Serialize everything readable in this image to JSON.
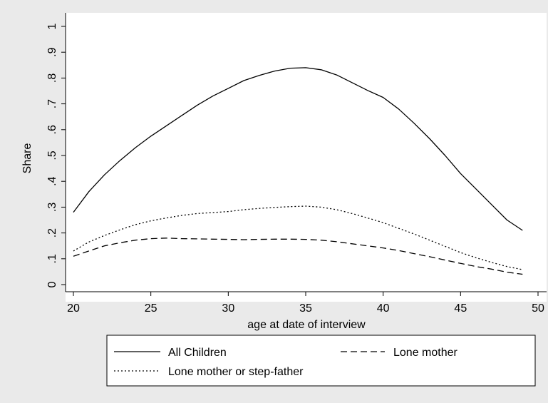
{
  "chart_data": {
    "type": "line",
    "title": "",
    "xlabel": "age at date of interview",
    "ylabel": "Share",
    "xlim": [
      20,
      50
    ],
    "ylim": [
      0,
      1
    ],
    "x_ticks": [
      "20",
      "25",
      "30",
      "35",
      "40",
      "45",
      "50"
    ],
    "y_ticks": [
      "0",
      ".1",
      ".2",
      ".3",
      ".4",
      ".5",
      ".6",
      ".7",
      ".8",
      ".9",
      "1"
    ],
    "grid": false,
    "legend": "bottom",
    "series": [
      {
        "name": "All Children",
        "style": "solid",
        "x": [
          20,
          21,
          22,
          23,
          24,
          25,
          26,
          27,
          28,
          29,
          30,
          31,
          32,
          33,
          34,
          35,
          36,
          37,
          38,
          39,
          40,
          41,
          42,
          43,
          44,
          45,
          46,
          47,
          48,
          49
        ],
        "y": [
          0.28,
          0.36,
          0.425,
          0.48,
          0.53,
          0.575,
          0.615,
          0.655,
          0.695,
          0.73,
          0.76,
          0.79,
          0.81,
          0.827,
          0.838,
          0.84,
          0.832,
          0.812,
          0.782,
          0.752,
          0.725,
          0.68,
          0.625,
          0.565,
          0.5,
          0.43,
          0.37,
          0.31,
          0.25,
          0.21
        ]
      },
      {
        "name": "Lone mother",
        "style": "dashed",
        "x": [
          20,
          21,
          22,
          23,
          24,
          25,
          26,
          27,
          28,
          29,
          30,
          31,
          32,
          33,
          34,
          35,
          36,
          37,
          38,
          39,
          40,
          41,
          42,
          43,
          44,
          45,
          46,
          47,
          48,
          49
        ],
        "y": [
          0.11,
          0.13,
          0.15,
          0.162,
          0.172,
          0.178,
          0.18,
          0.178,
          0.177,
          0.176,
          0.175,
          0.174,
          0.175,
          0.176,
          0.176,
          0.175,
          0.172,
          0.166,
          0.158,
          0.15,
          0.142,
          0.132,
          0.12,
          0.108,
          0.095,
          0.082,
          0.07,
          0.06,
          0.048,
          0.04
        ]
      },
      {
        "name": "Lone mother or step-father",
        "style": "dotted",
        "x": [
          20,
          21,
          22,
          23,
          24,
          25,
          26,
          27,
          28,
          29,
          30,
          31,
          32,
          33,
          34,
          35,
          36,
          37,
          38,
          39,
          40,
          41,
          42,
          43,
          44,
          45,
          46,
          47,
          48,
          49
        ],
        "y": [
          0.13,
          0.165,
          0.19,
          0.212,
          0.232,
          0.247,
          0.258,
          0.268,
          0.275,
          0.279,
          0.283,
          0.29,
          0.295,
          0.299,
          0.302,
          0.304,
          0.3,
          0.29,
          0.275,
          0.258,
          0.24,
          0.218,
          0.196,
          0.172,
          0.148,
          0.124,
          0.104,
          0.086,
          0.07,
          0.058
        ]
      }
    ]
  }
}
